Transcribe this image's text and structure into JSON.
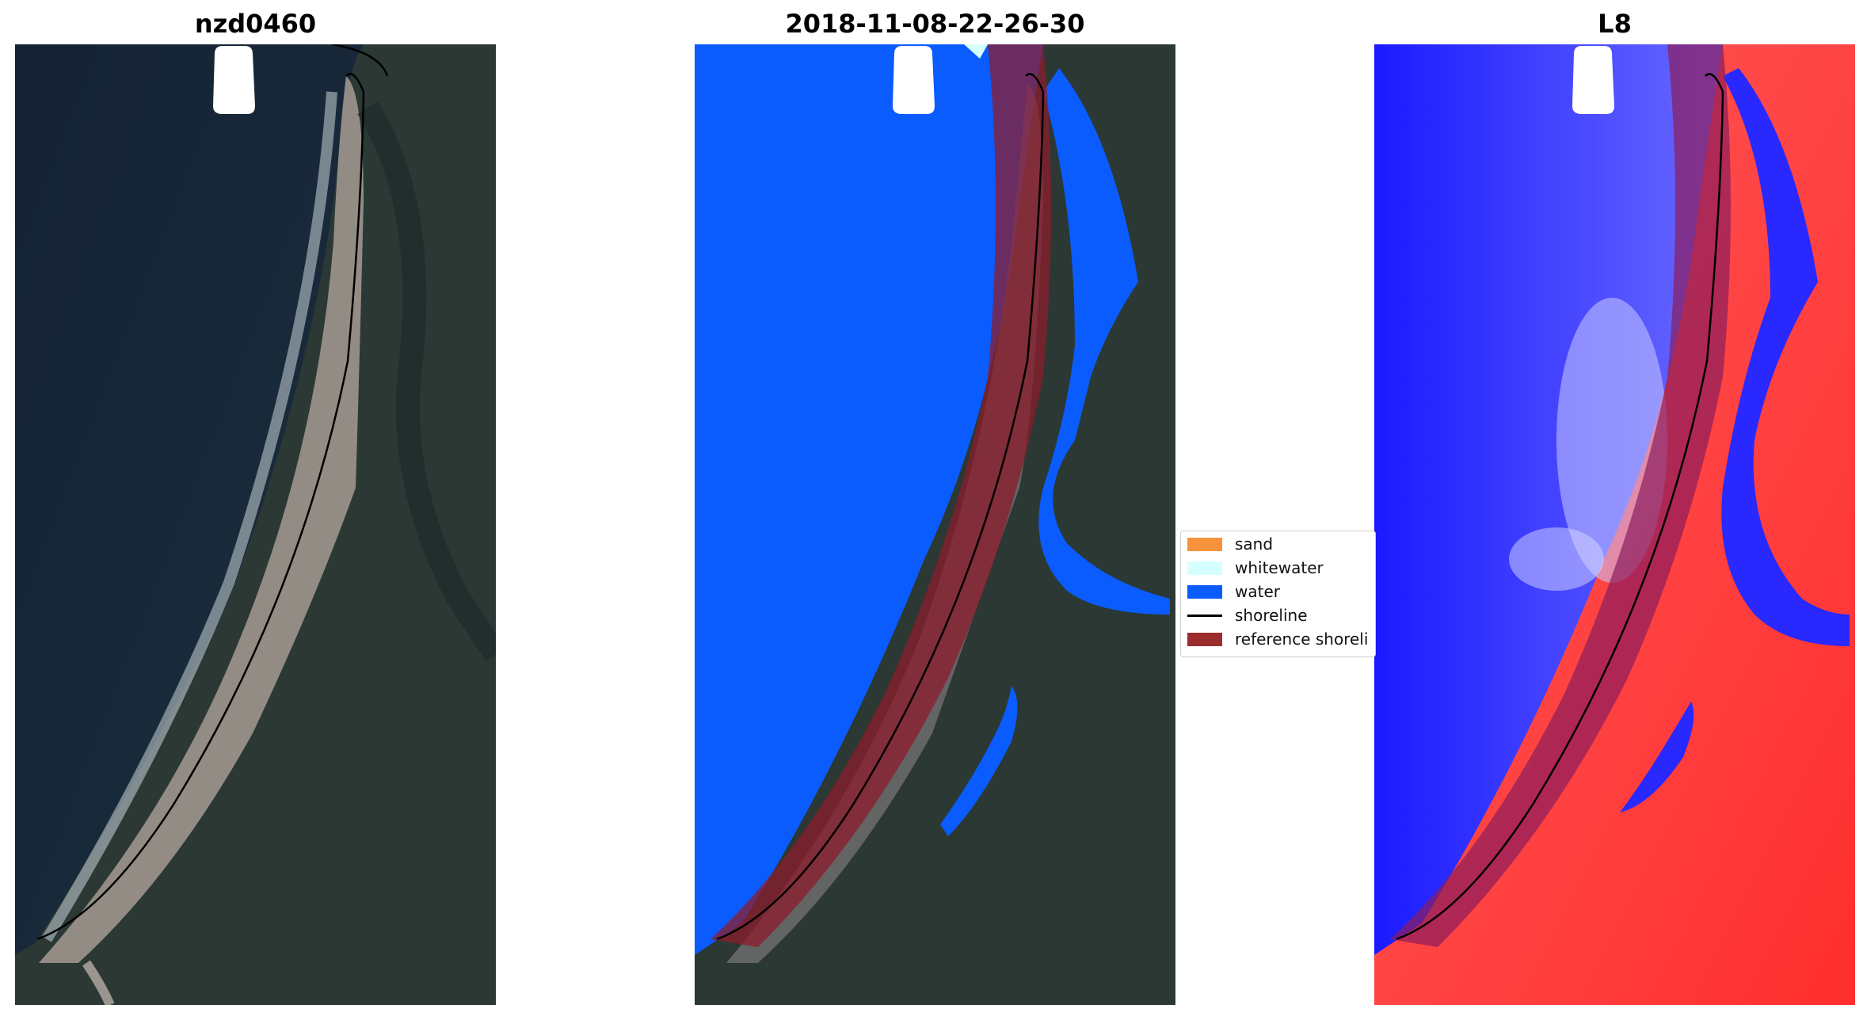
{
  "panels": [
    {
      "title": "nzd0460"
    },
    {
      "title": "2018-11-08-22-26-30"
    },
    {
      "title": "L8"
    }
  ],
  "legend": {
    "items": [
      {
        "label": "sand",
        "type": "patch",
        "color": "#f6923b"
      },
      {
        "label": "whitewater",
        "type": "patch",
        "color": "#d6ffff"
      },
      {
        "label": "water",
        "type": "patch",
        "color": "#0a5cff"
      },
      {
        "label": "shoreline",
        "type": "line",
        "color": "#000000"
      },
      {
        "label": "reference shoreli",
        "type": "patch",
        "color": "#9b2d2d"
      }
    ]
  },
  "colors": {
    "ocean_dark": "#16263a",
    "land_dark": "#2c3a33",
    "sand_beach": "#a9a29a",
    "water_class": "#0a5cff",
    "reference_buffer": "#8b1c2c",
    "mndwi_water": "#2020ff",
    "mndwi_land": "#ff3030"
  }
}
